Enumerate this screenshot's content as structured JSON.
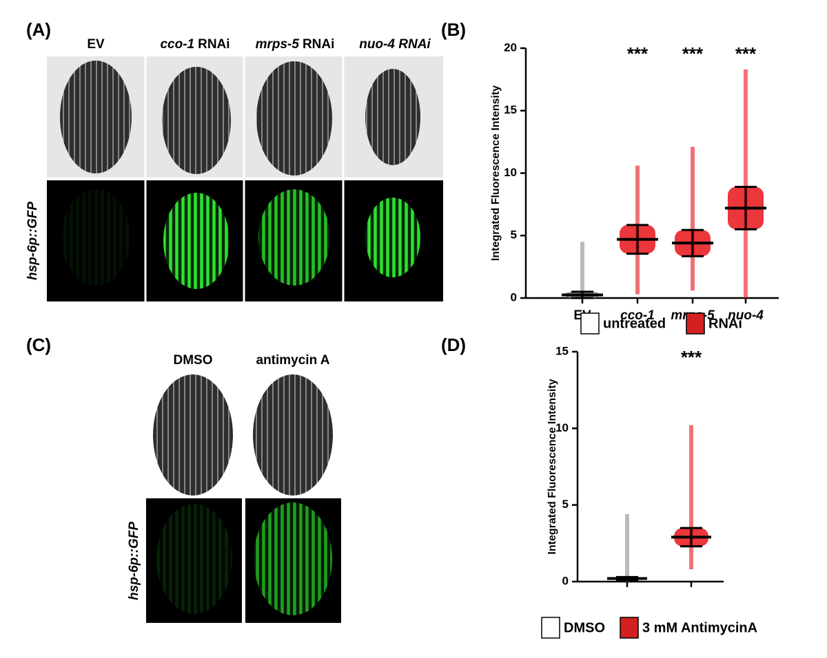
{
  "panels": {
    "A": {
      "label": "(A)",
      "columns": [
        "EV",
        [
          "cco-1",
          "RNAi"
        ],
        [
          "mrps-5",
          "RNAi"
        ],
        "nuo-4 RNAi"
      ],
      "row_label": "hsp-6p::GFP"
    },
    "B": {
      "label": "(B)"
    },
    "C": {
      "label": "(C)",
      "columns": [
        "DMSO",
        "antimycin A"
      ],
      "row_label": "hsp-6p::GFP"
    },
    "D": {
      "label": "(D)"
    }
  },
  "chart_data": [
    {
      "type": "dot",
      "y_label": "Integrated Fluorescence Intensity",
      "categories": [
        "EV",
        "cco-1",
        "mrps-5",
        "nuo-4"
      ],
      "values": [
        0.25,
        4.7,
        4.4,
        7.2
      ],
      "errors": [
        0.25,
        1.15,
        1.05,
        1.7
      ],
      "min": [
        0,
        0.3,
        0.6,
        0
      ],
      "max": [
        4.5,
        10.6,
        12.1,
        18.3
      ],
      "colors": [
        "#8c8c8c",
        "#e8141a",
        "#e8141a",
        "#e8141a"
      ],
      "significance": [
        null,
        "***",
        "***",
        "***"
      ],
      "legend": [
        {
          "name": "untreated",
          "color": "#ffffff"
        },
        {
          "name": "RNAi",
          "color": "#d42020"
        }
      ],
      "ylim": [
        0,
        20
      ],
      "yticks": [
        0,
        5,
        10,
        15,
        20
      ]
    },
    {
      "type": "dot",
      "y_label": "Integrated Fluorescence Intensity",
      "categories": [
        null,
        null
      ],
      "values": [
        0.2,
        2.9
      ],
      "errors": [
        0.1,
        0.6
      ],
      "min": [
        0,
        0.8
      ],
      "max": [
        4.4,
        10.2
      ],
      "colors": [
        "#8c8c8c",
        "#e8141a"
      ],
      "significance": [
        null,
        "***"
      ],
      "legend": [
        {
          "name": "DMSO",
          "color": "#ffffff"
        },
        {
          "name": "3 mM AntimycinA",
          "color": "#d42020"
        }
      ],
      "ylim": [
        0,
        15
      ],
      "yticks": [
        0,
        5,
        10,
        15
      ]
    }
  ]
}
